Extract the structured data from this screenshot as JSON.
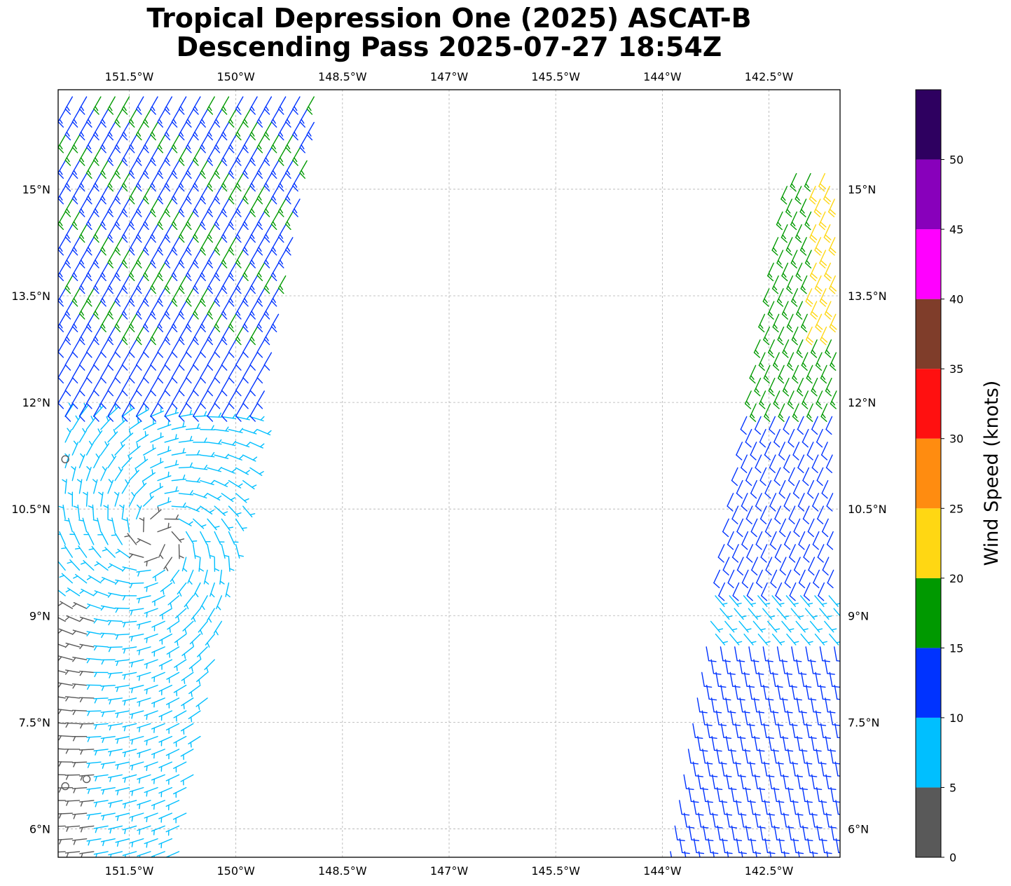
{
  "title": {
    "line1": "Tropical Depression One (2025) ASCAT-B",
    "line2": "Descending Pass 2025-07-27 18:54Z"
  },
  "map": {
    "lon_range": [
      -152.5,
      -141.5
    ],
    "lat_range": [
      5.6,
      16.4
    ],
    "lon_ticks": [
      {
        "value": -151.5,
        "label": "151.5°W"
      },
      {
        "value": -150.0,
        "label": "150°W"
      },
      {
        "value": -148.5,
        "label": "148.5°W"
      },
      {
        "value": -147.0,
        "label": "147°W"
      },
      {
        "value": -145.5,
        "label": "145.5°W"
      },
      {
        "value": -144.0,
        "label": "144°W"
      },
      {
        "value": -142.5,
        "label": "142.5°W"
      }
    ],
    "lat_ticks": [
      {
        "value": 6.0,
        "label": "6°N"
      },
      {
        "value": 7.5,
        "label": "7.5°N"
      },
      {
        "value": 9.0,
        "label": "9°N"
      },
      {
        "value": 10.5,
        "label": "10.5°N"
      },
      {
        "value": 12.0,
        "label": "12°N"
      },
      {
        "value": 13.5,
        "label": "13.5°N"
      },
      {
        "value": 15.0,
        "label": "15°N"
      }
    ],
    "gridlines": true,
    "swaths": [
      {
        "name": "west",
        "lat_bottom": 5.6,
        "lat_top": 16.4,
        "west_lon": -152.4,
        "east_lon_bottom": -150.8,
        "east_lon_top": -148.8
      },
      {
        "name": "east",
        "lat_bottom": 5.6,
        "lat_top": 15.3,
        "west_lon_bottom": -143.9,
        "west_lon_top": -142.2,
        "east_lon": -141.55
      }
    ]
  },
  "colorbar": {
    "label": "Wind Speed (knots)",
    "range": [
      0,
      55
    ],
    "ticks": [
      "0",
      "5",
      "10",
      "15",
      "20",
      "25",
      "30",
      "35",
      "40",
      "45",
      "50"
    ],
    "bins": [
      {
        "min": 0,
        "max": 5,
        "color": "#595959"
      },
      {
        "min": 5,
        "max": 10,
        "color": "#00bfff"
      },
      {
        "min": 10,
        "max": 15,
        "color": "#0033ff"
      },
      {
        "min": 15,
        "max": 20,
        "color": "#009900"
      },
      {
        "min": 20,
        "max": 25,
        "color": "#ffd713"
      },
      {
        "min": 25,
        "max": 30,
        "color": "#ff8c10"
      },
      {
        "min": 30,
        "max": 35,
        "color": "#ff1010"
      },
      {
        "min": 35,
        "max": 40,
        "color": "#7f3d2a"
      },
      {
        "min": 40,
        "max": 45,
        "color": "#ff00ff"
      },
      {
        "min": 45,
        "max": 50,
        "color": "#8800bb"
      },
      {
        "min": 50,
        "max": 55,
        "color": "#2e0060"
      }
    ]
  },
  "wind_field": {
    "circulation_center": {
      "lon": -151.1,
      "lat": 10.1
    },
    "calm_circles": [
      {
        "lon": -152.4,
        "lat": 11.2
      },
      {
        "lon": -152.4,
        "lat": 6.6
      },
      {
        "lon": -152.1,
        "lat": 6.7
      }
    ]
  }
}
